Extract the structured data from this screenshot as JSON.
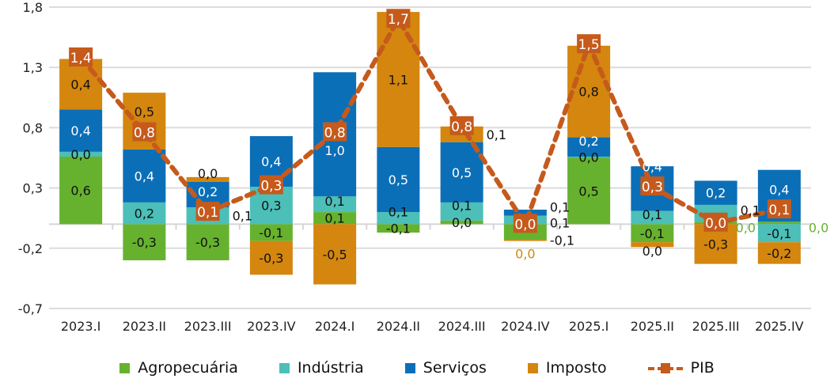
{
  "chart_data": {
    "type": "bar",
    "stacked": true,
    "title": "",
    "xlabel": "",
    "ylabel": "",
    "ylim": [
      -0.7,
      1.8
    ],
    "yticks": [
      1.8,
      1.3,
      0.8,
      0.3,
      -0.2,
      -0.7
    ],
    "ytick_labels": [
      "1,8",
      "1,3",
      "0,8",
      "0,3",
      "-0,2",
      "-0,7"
    ],
    "grid": true,
    "legend_position": "bottom",
    "categories": [
      "2023.I",
      "2023.II",
      "2023.III",
      "2023.IV",
      "2024.I",
      "2024.II",
      "2024.III",
      "2024.IV",
      "2025.I",
      "2025.II",
      "2025.III",
      "2025.IV"
    ],
    "series": [
      {
        "name": "Agropecuária",
        "color": "#66b22e",
        "values": [
          0.56,
          -0.3,
          -0.3,
          -0.14,
          0.1,
          -0.07,
          0.03,
          -0.13,
          0.55,
          -0.15,
          0.02,
          0.02
        ],
        "labels": [
          "0,6",
          "-0,3",
          "-0,3",
          "-0,1",
          "0,1",
          "-0,1",
          "0,0",
          "-0,1",
          "0,5",
          "-0,1",
          "0,0",
          "0,0"
        ]
      },
      {
        "name": "Indústria",
        "color": "#4bbfb8",
        "values": [
          0.04,
          0.18,
          0.14,
          0.31,
          0.13,
          0.1,
          0.15,
          0.07,
          0.01,
          0.11,
          0.14,
          -0.15
        ],
        "labels": [
          "0,0",
          "0,2",
          "0,1",
          "0,3",
          "0,1",
          "0,1",
          "0,1",
          "0,1",
          "0,0",
          "0,1",
          "0,1",
          "-0,1"
        ]
      },
      {
        "name": "Serviços",
        "color": "#0b6fb8",
        "values": [
          0.35,
          0.44,
          0.21,
          0.42,
          1.03,
          0.54,
          0.5,
          0.05,
          0.16,
          0.37,
          0.2,
          0.43
        ],
        "labels": [
          "0,4",
          "0,4",
          "0,2",
          "0,4",
          "1,0",
          "0,5",
          "0,5",
          "0,1",
          "0,2",
          "0,4",
          "0,2",
          "0,4"
        ]
      },
      {
        "name": "Imposto",
        "color": "#d4860e",
        "values": [
          0.42,
          0.47,
          0.04,
          -0.28,
          -0.5,
          1.12,
          0.13,
          -0.01,
          0.76,
          -0.04,
          -0.33,
          -0.18
        ],
        "labels": [
          "0,4",
          "0,5",
          "0,0",
          "-0,3",
          "-0,5",
          "1,1",
          "0,1",
          "0,0",
          "0,8",
          "0,0",
          "-0,3",
          "-0,2"
        ]
      }
    ],
    "line": {
      "name": "PIB",
      "color": "#c55a1c",
      "values": [
        1.38,
        0.76,
        0.1,
        0.32,
        0.76,
        1.7,
        0.81,
        0.0,
        1.49,
        0.31,
        0.01,
        0.12
      ],
      "labels": [
        "1,4",
        "0,8",
        "0,1",
        "0,3",
        "0,8",
        "1,7",
        "0,8",
        "0,0",
        "1,5",
        "0,3",
        "0,0",
        "0,1"
      ]
    }
  }
}
